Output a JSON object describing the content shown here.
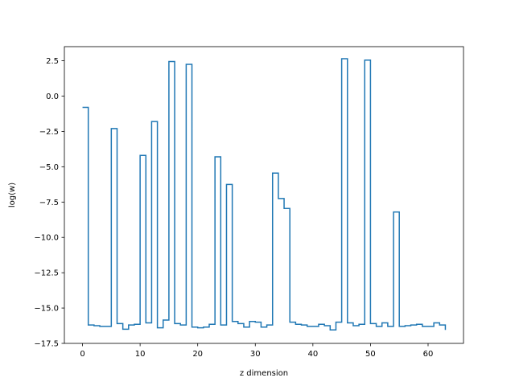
{
  "chart_data": {
    "type": "line",
    "drawstyle": "steps-post",
    "xlabel": "z dimension",
    "ylabel": "log(w)",
    "title": "",
    "xlim": [
      -3.15,
      66.15
    ],
    "ylim": [
      -17.5,
      3.5
    ],
    "xticks": [
      0,
      10,
      20,
      30,
      40,
      50,
      60
    ],
    "yticks": [
      2.5,
      0.0,
      -2.5,
      -5.0,
      -7.5,
      -10.0,
      -12.5,
      -15.0,
      -17.5
    ],
    "ytick_labels": [
      "2.5",
      "0.0",
      "−2.5",
      "−5.0",
      "−7.5",
      "−10.0",
      "−12.5",
      "−15.0",
      "−17.5"
    ],
    "grid": false,
    "line_color": "#1f77b4",
    "series": [
      {
        "x": [
          0,
          1,
          2,
          3,
          4,
          5,
          6,
          7,
          8,
          9,
          10,
          11,
          12,
          13,
          14,
          15,
          16,
          17,
          18,
          19,
          20,
          21,
          22,
          23,
          24,
          25,
          26,
          27,
          28,
          29,
          30,
          31,
          32,
          33,
          34,
          35,
          36,
          37,
          38,
          39,
          40,
          41,
          42,
          43,
          44,
          45,
          46,
          47,
          48,
          49,
          50,
          51,
          52,
          53,
          54,
          55,
          56,
          57,
          58,
          59,
          60,
          61,
          62,
          63
        ],
        "y": [
          -0.8,
          -16.2,
          -16.25,
          -16.3,
          -16.3,
          -2.3,
          -16.1,
          -16.5,
          -16.2,
          -16.15,
          -4.2,
          -16.05,
          -1.8,
          -16.4,
          -15.85,
          2.45,
          -16.1,
          -16.2,
          2.25,
          -16.35,
          -16.4,
          -16.35,
          -16.15,
          -4.3,
          -16.2,
          -6.25,
          -15.95,
          -16.1,
          -16.35,
          -15.95,
          -16.0,
          -16.35,
          -16.2,
          -5.45,
          -7.25,
          -7.95,
          -16.0,
          -16.15,
          -16.2,
          -16.3,
          -16.3,
          -16.15,
          -16.25,
          -16.55,
          -16.0,
          2.65,
          -16.05,
          -16.25,
          -16.15,
          2.55,
          -16.1,
          -16.3,
          -16.05,
          -16.3,
          -8.2,
          -16.3,
          -16.25,
          -16.2,
          -16.15,
          -16.3,
          -16.3,
          -16.05,
          -16.2,
          -16.55
        ]
      }
    ]
  }
}
